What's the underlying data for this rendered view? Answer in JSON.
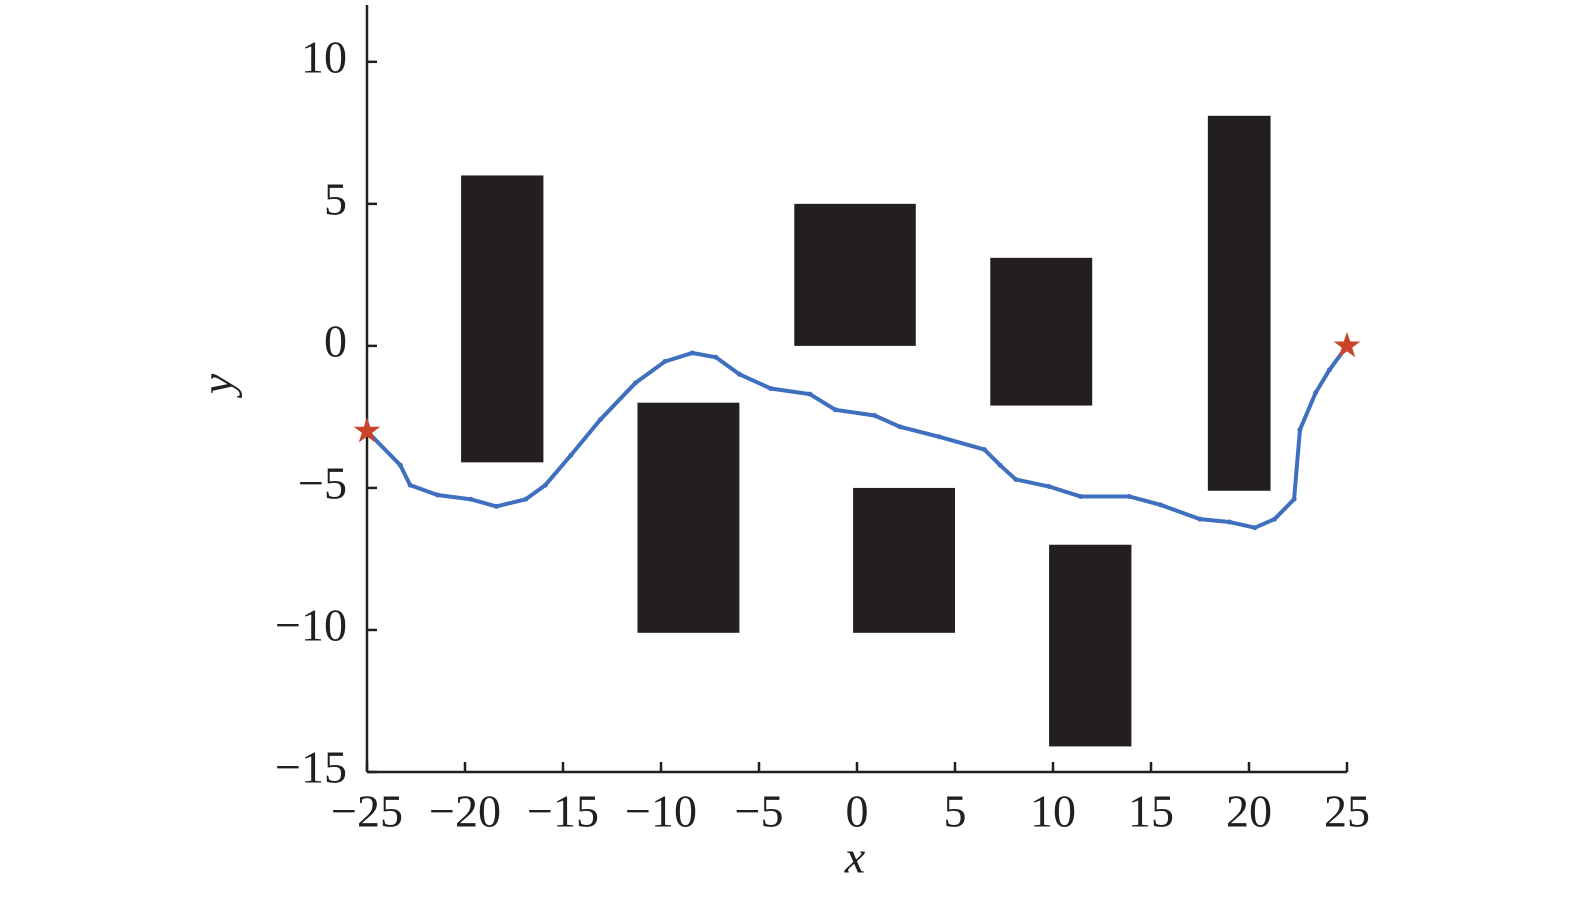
{
  "chart_data": {
    "type": "line",
    "x_label": "x",
    "y_label": "y",
    "xlim": [
      -25,
      25
    ],
    "ylim": [
      -15,
      12
    ],
    "xticks": [
      {
        "value": -25,
        "label": "−25"
      },
      {
        "value": -20,
        "label": "−20"
      },
      {
        "value": -15,
        "label": "−15"
      },
      {
        "value": -10,
        "label": "−10"
      },
      {
        "value": -5,
        "label": "−5"
      },
      0,
      5,
      10,
      15,
      20,
      25
    ],
    "yticks": [
      {
        "value": -15,
        "label": "−15"
      },
      {
        "value": -10,
        "label": "−10"
      },
      {
        "value": -5,
        "label": "−5"
      },
      0,
      5,
      10
    ],
    "obstacle_color": "#231f20",
    "obstacles": [
      {
        "x0": -20.2,
        "x1": -16.0,
        "y0": -4.1,
        "y1": 6.0
      },
      {
        "x0": -11.2,
        "x1": -6.0,
        "y0": -10.1,
        "y1": -2.0
      },
      {
        "x0": -3.2,
        "x1": 3.0,
        "y0": 0.0,
        "y1": 5.0
      },
      {
        "x0": -0.2,
        "x1": 5.0,
        "y0": -10.1,
        "y1": -5.0
      },
      {
        "x0": 6.8,
        "x1": 12.0,
        "y0": -2.1,
        "y1": 3.1
      },
      {
        "x0": 9.8,
        "x1": 14.0,
        "y0": -14.1,
        "y1": -7.0
      },
      {
        "x0": 17.9,
        "x1": 21.1,
        "y0": -5.1,
        "y1": 8.1
      }
    ],
    "path": {
      "color": "#3f6fbf",
      "x": [
        -25,
        -23.3,
        -22.8,
        -21.4,
        -19.7,
        -18.4,
        -16.9,
        -15.9,
        -14.6,
        -13.1,
        -11.3,
        -9.8,
        -8.4,
        -7.2,
        -6.0,
        -4.4,
        -2.4,
        -1.1,
        0.9,
        2.2,
        4.2,
        6.5,
        7.3,
        8.1,
        9.8,
        11.4,
        13.9,
        15.5,
        17.5,
        19.0,
        20.3,
        21.3,
        22.3,
        22.6,
        23.4,
        24.1,
        25
      ],
      "y": [
        -3,
        -4.2,
        -4.9,
        -5.25,
        -5.4,
        -5.65,
        -5.4,
        -4.9,
        -3.85,
        -2.6,
        -1.3,
        -0.55,
        -0.25,
        -0.4,
        -1.0,
        -1.5,
        -1.7,
        -2.25,
        -2.45,
        -2.85,
        -3.2,
        -3.65,
        -4.2,
        -4.7,
        -4.95,
        -5.3,
        -5.3,
        -5.6,
        -6.1,
        -6.2,
        -6.4,
        -6.1,
        -5.4,
        -2.95,
        -1.65,
        -0.85,
        0
      ]
    },
    "endpoints": {
      "color": "#c8452a",
      "x": [
        -25,
        25
      ],
      "y": [
        -3,
        0
      ]
    }
  }
}
